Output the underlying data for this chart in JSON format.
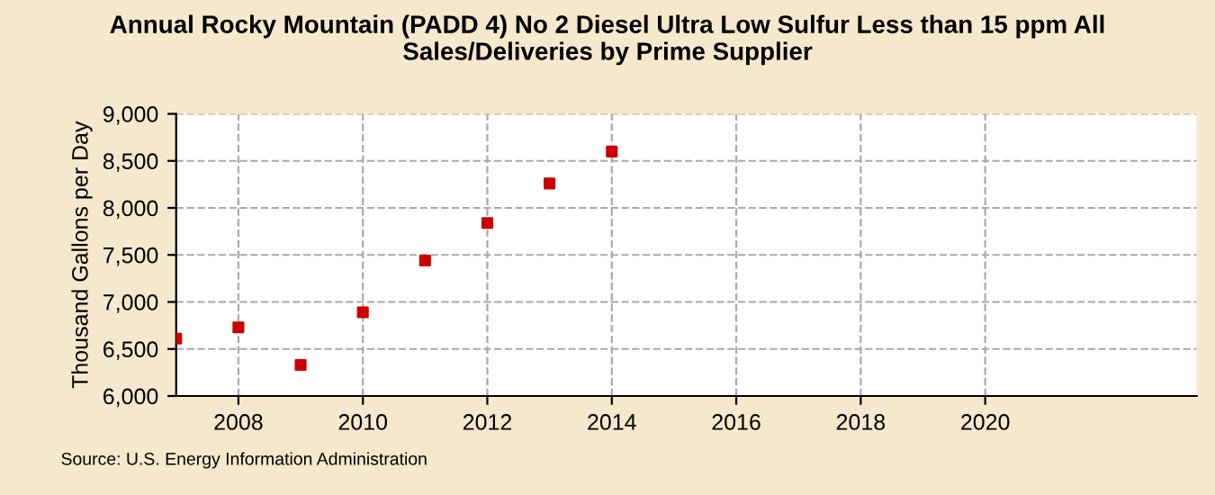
{
  "chart_data": {
    "type": "scatter",
    "title": "Annual Rocky Mountain (PADD 4) No 2 Diesel Ultra Low Sulfur Less than 15 ppm All\nSales/Deliveries by Prime Supplier",
    "ylabel": "Thousand Gallons per Day",
    "x": [
      2007,
      2008,
      2009,
      2010,
      2011,
      2012,
      2013,
      2014
    ],
    "series": [
      {
        "color": "#cc0000",
        "values": [
          6610,
          6730,
          6330,
          6890,
          7440,
          7840,
          8260,
          8600
        ]
      }
    ],
    "marker": "square",
    "xlim": [
      2007,
      2023.4
    ],
    "xticks": [
      2008,
      2010,
      2012,
      2014,
      2016,
      2018,
      2020
    ],
    "ylim": [
      6000,
      9000
    ],
    "yticks": [
      {
        "value": 6000,
        "label": "6,000"
      },
      {
        "value": 6500,
        "label": "6,500"
      },
      {
        "value": 7000,
        "label": "7,000"
      },
      {
        "value": 7500,
        "label": "7,500"
      },
      {
        "value": 8000,
        "label": "8,000"
      },
      {
        "value": 8500,
        "label": "8,500"
      },
      {
        "value": 9000,
        "label": "9,000"
      }
    ],
    "grid": true,
    "annotations": [
      "Source: U.S. Energy Information Administration"
    ]
  }
}
